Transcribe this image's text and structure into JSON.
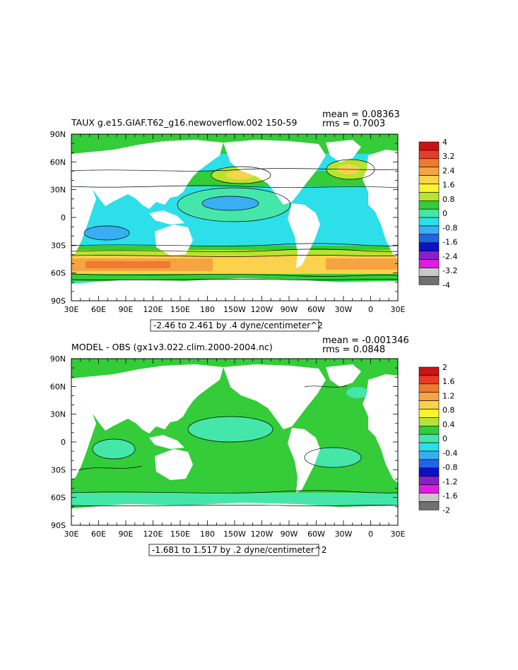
{
  "panels": [
    {
      "title": "TAUX g.e15.GIAF.T62_g16.newoverflow.002 ",
      "year_range": "150-59",
      "mean_text": "mean = 0.08363",
      "rms_text": "rms = 0.7003",
      "range_label": "-2.46 to 2.461 by .4 dyne/centimeter^2",
      "lat_labels": [
        "90N",
        "60N",
        "30N",
        "0",
        "30S",
        "60S",
        "90S"
      ],
      "lon_labels": [
        "30E",
        "60E",
        "90E",
        "120E",
        "150E",
        "180",
        "150W",
        "120W",
        "90W",
        "60W",
        "30W",
        "0",
        "30E"
      ],
      "colorbar": {
        "labels": [
          "4",
          "3.2",
          "2.4",
          "1.6",
          "0.8",
          "0",
          "-0.8",
          "-1.6",
          "-2.4",
          "-3.2",
          "-4"
        ],
        "colors": [
          "#c81414",
          "#e83b2a",
          "#f07a30",
          "#f6a441",
          "#fbd24d",
          "#f9f52d",
          "#b6e42f",
          "#34cc38",
          "#45e6a9",
          "#2ddfe8",
          "#3aaef2",
          "#2164e8",
          "#0b11c8",
          "#8a1fc8",
          "#e11ce0",
          "#c8c8c8",
          "#707070"
        ]
      }
    },
    {
      "title": "MODEL - OBS (gx1v3.022.clim.2000-2004.nc)",
      "mean_text": "mean = -0.001346",
      "rms_text": "rms = 0.0848",
      "range_label": "-1.681 to 1.517 by .2 dyne/centimeter^2",
      "lat_labels": [
        "90N",
        "60N",
        "30N",
        "0",
        "30S",
        "60S",
        "90S"
      ],
      "lon_labels": [
        "30E",
        "60E",
        "90E",
        "120E",
        "150E",
        "180",
        "150W",
        "120W",
        "90W",
        "60W",
        "30W",
        "0",
        "30E"
      ],
      "colorbar": {
        "labels": [
          "2",
          "1.6",
          "1.2",
          "0.8",
          "0.4",
          "0",
          "-0.4",
          "-0.8",
          "-1.2",
          "-1.6",
          "-2"
        ],
        "colors": [
          "#c81414",
          "#e83b2a",
          "#f07a30",
          "#f6a441",
          "#fbd24d",
          "#f9f52d",
          "#b6e42f",
          "#34cc38",
          "#45e6a9",
          "#2ddfe8",
          "#3aaef2",
          "#2164e8",
          "#0b11c8",
          "#8a1fc8",
          "#e11ce0",
          "#c8c8c8",
          "#707070"
        ]
      }
    }
  ]
}
